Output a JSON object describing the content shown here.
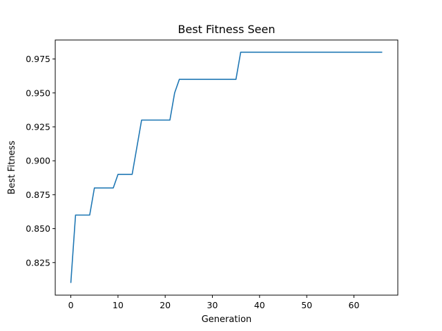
{
  "chart_data": {
    "type": "line",
    "title": "Best Fitness Seen",
    "xlabel": "Generation",
    "ylabel": "Best Fitness",
    "xlim": [
      -3.3,
      69.3
    ],
    "ylim": [
      0.801,
      0.989
    ],
    "xticks": [
      0,
      10,
      20,
      30,
      40,
      50,
      60
    ],
    "xtick_labels": [
      "0",
      "10",
      "20",
      "30",
      "40",
      "50",
      "60"
    ],
    "yticks": [
      0.825,
      0.85,
      0.875,
      0.9,
      0.925,
      0.95,
      0.975
    ],
    "ytick_labels": [
      "0.825",
      "0.850",
      "0.875",
      "0.900",
      "0.925",
      "0.950",
      "0.975"
    ],
    "grid": false,
    "series": [
      {
        "color": "#1f77b4",
        "x": [
          0,
          1,
          4,
          5,
          9,
          10,
          13,
          15,
          21,
          22,
          23,
          35,
          36,
          66
        ],
        "y": [
          0.81,
          0.86,
          0.86,
          0.88,
          0.88,
          0.89,
          0.89,
          0.93,
          0.93,
          0.95,
          0.96,
          0.96,
          0.98,
          0.98
        ]
      }
    ]
  }
}
